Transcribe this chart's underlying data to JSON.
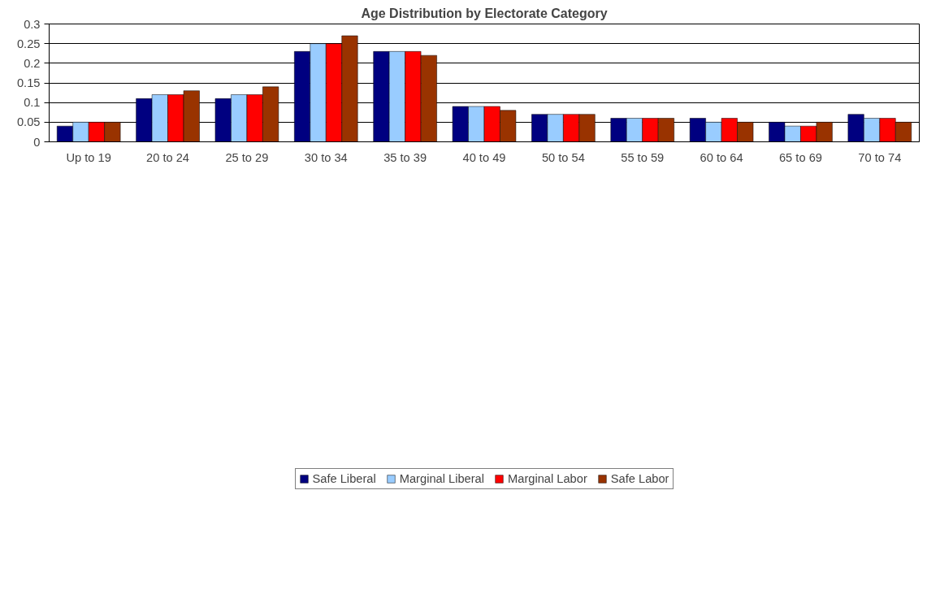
{
  "chart_data": {
    "type": "bar",
    "title": "Age Distribution by Electorate Category",
    "categories": [
      "Up to 19",
      "20 to 24",
      "25 to 29",
      "30 to 34",
      "35 to 39",
      "40 to 49",
      "50 to 54",
      "55 to 59",
      "60 to 64",
      "65 to 69",
      "70 to 74"
    ],
    "series": [
      {
        "name": "Safe Liberal",
        "color": "#000080",
        "values": [
          0.04,
          0.11,
          0.11,
          0.23,
          0.23,
          0.09,
          0.07,
          0.06,
          0.06,
          0.05,
          0.07
        ]
      },
      {
        "name": "Marginal Liberal",
        "color": "#99ccff",
        "values": [
          0.05,
          0.12,
          0.12,
          0.25,
          0.23,
          0.09,
          0.07,
          0.06,
          0.05,
          0.04,
          0.06
        ]
      },
      {
        "name": "Marginal Labor",
        "color": "#ff0000",
        "values": [
          0.05,
          0.12,
          0.12,
          0.25,
          0.23,
          0.09,
          0.07,
          0.06,
          0.06,
          0.04,
          0.06
        ]
      },
      {
        "name": "Safe Labor",
        "color": "#993300",
        "values": [
          0.05,
          0.13,
          0.14,
          0.27,
          0.22,
          0.08,
          0.07,
          0.06,
          0.05,
          0.05,
          0.05
        ]
      }
    ],
    "ylim": [
      0,
      0.3
    ],
    "yticks": [
      0,
      0.05,
      0.1,
      0.15,
      0.2,
      0.25,
      0.3
    ],
    "grid": "y",
    "legend": "bottom"
  }
}
